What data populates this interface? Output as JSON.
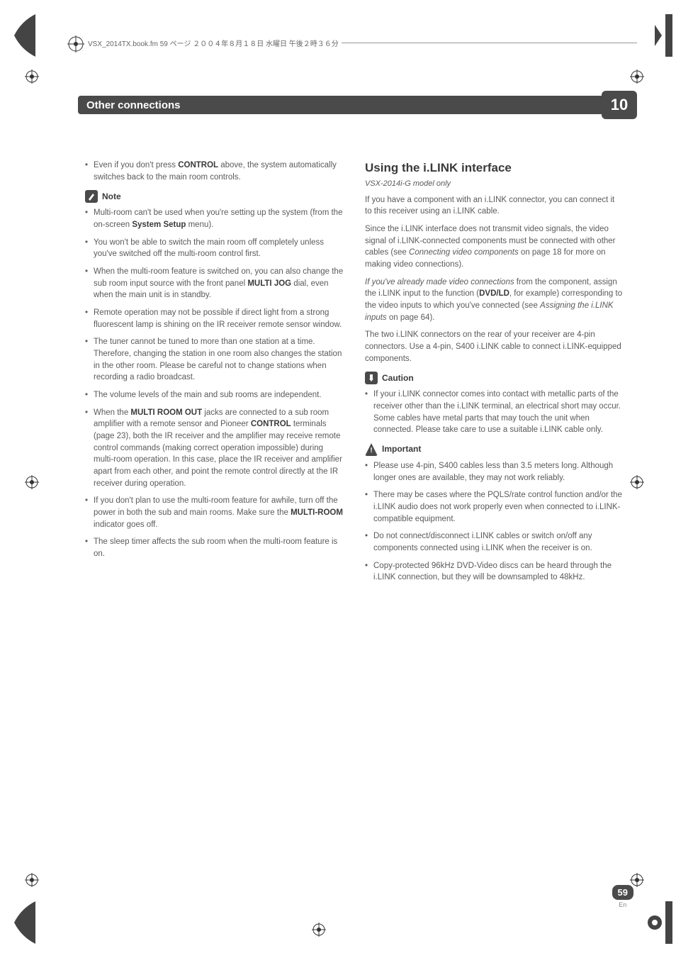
{
  "header": {
    "bookline": "VSX_2014TX.book.fm 59 ページ ２００４年８月１８日 水曜日 午後２時３６分"
  },
  "chapter": {
    "title": "Other connections",
    "number": "10"
  },
  "left": {
    "intro_bullet": "Even if you don't press CONTROL above, the system automatically switches back to the main room controls.",
    "note_label": "Note",
    "notes": [
      "Multi-room can't be used when you're setting up the system (from the on-screen System Setup menu).",
      "You won't be able to switch the main room off completely unless you've switched off the multi-room control first.",
      "When the multi-room feature is switched on, you can also change the sub room input source with the front panel MULTI JOG dial, even when the main unit is in standby.",
      "Remote operation may not be possible if direct light from a strong fluorescent lamp is shining on the IR receiver remote sensor window.",
      "The tuner cannot be tuned to more than one station at a time. Therefore, changing the station in one room also changes the station in the other room. Please be careful not to change stations when recording a radio broadcast.",
      "The volume levels of the main and sub rooms are independent.",
      "When the MULTI ROOM OUT jacks are connected to a sub room amplifier with a remote sensor and Pioneer CONTROL terminals (page 23), both the IR receiver and the amplifier may receive remote control commands (making correct operation impossible) during multi-room operation. In this case, place the IR receiver and amplifier apart from each other, and point the remote control directly at the IR receiver during operation.",
      "If you don't plan to use the multi-room feature for awhile, turn off the power in both the sub and main rooms. Make sure the MULTI-ROOM indicator goes off.",
      "The sleep timer affects the sub room when the multi-room feature is on."
    ]
  },
  "right": {
    "heading": "Using the i.LINK interface",
    "model": "VSX-2014i-G model only",
    "p1": "If you have a component with an i.LINK connector, you can connect it to this receiver using an i.LINK cable.",
    "p2": "Since the i.LINK interface does not transmit video signals, the video signal of i.LINK-connected components must be connected with other cables (see Connecting video components on page 18 for more on making video connections).",
    "p3": "If you've already made video connections from the component, assign the i.LINK input to the function (DVD/LD, for example) corresponding to the video inputs to which you've connected (see Assigning the i.LINK inputs on page 64).",
    "p4": "The two i.LINK connectors on the rear of your receiver are 4-pin connectors. Use a 4-pin, S400 i.LINK cable to connect i.LINK-equipped components.",
    "caution_label": "Caution",
    "caution_text": "If your i.LINK connector comes into contact with metallic parts of the receiver other than the i.LINK terminal, an electrical short may occur. Some cables have metal parts that may touch the unit when connected. Please take care to use a suitable i.LINK cable only.",
    "important_label": "Important",
    "importants": [
      "Please use 4-pin, S400 cables less than 3.5 meters long. Although longer ones are available, they may not work reliably.",
      "There may be cases where the PQLS/rate control function and/or the i.LINK audio does not work properly even when connected to i.LINK-compatible equipment.",
      "Do not connect/disconnect i.LINK cables or switch on/off any components connected using i.LINK when the receiver is on.",
      "Copy-protected 96kHz DVD-Video discs can be heard through the i.LINK connection, but they will be downsampled to 48kHz."
    ]
  },
  "page": {
    "num": "59",
    "lang": "En"
  }
}
